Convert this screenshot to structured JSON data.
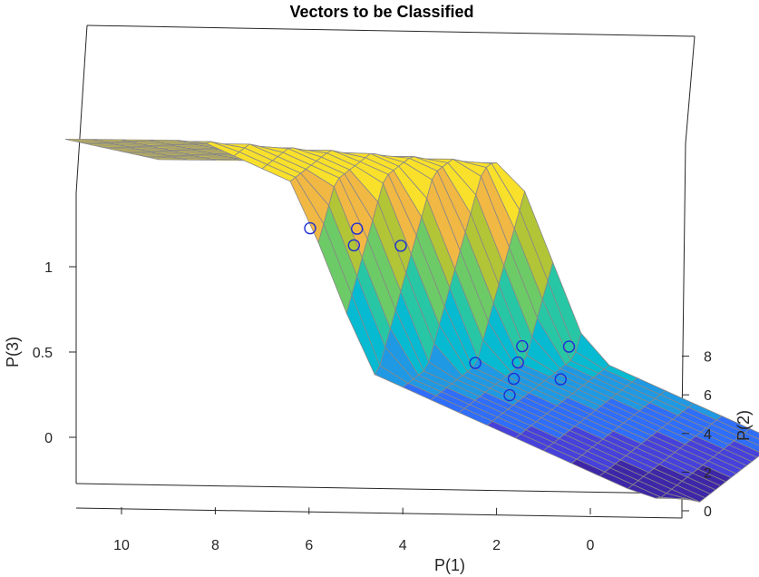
{
  "chart_data": {
    "type": "surface-3d",
    "title": "Vectors to be Classified",
    "xlabel": "P(1)",
    "ylabel": "P(2)",
    "zlabel": "P(3)",
    "x_ticks": [
      "10",
      "8",
      "6",
      "4",
      "2",
      "0"
    ],
    "y_ticks": [
      "0",
      "2",
      "4",
      "6",
      "8"
    ],
    "z_ticks": [
      "0",
      "0.5",
      "1"
    ],
    "colormap": [
      "#3e26a8",
      "#4741dc",
      "#2f6efa",
      "#1f99e3",
      "#06bad2",
      "#27c7a6",
      "#6ccb66",
      "#b2c536",
      "#f2b844",
      "#f9e02a"
    ],
    "marker_color": "#1c2fd6",
    "points": [
      {
        "x": 7.8,
        "y": 8.2,
        "z": 1.3
      },
      {
        "x": 6.8,
        "y": 8.2,
        "z": 1.3
      },
      {
        "x": 6.8,
        "y": 7.9,
        "z": 1.2
      },
      {
        "x": 5.8,
        "y": 7.9,
        "z": 1.2
      },
      {
        "x": 2.9,
        "y": 2.0,
        "z": 0.45
      },
      {
        "x": 1.9,
        "y": 2.0,
        "z": 0.55
      },
      {
        "x": 1.9,
        "y": 1.6,
        "z": 0.45
      },
      {
        "x": 1.9,
        "y": 1.2,
        "z": 0.35
      },
      {
        "x": 1.9,
        "y": 0.8,
        "z": 0.25
      },
      {
        "x": 0.9,
        "y": 2.0,
        "z": 0.55
      },
      {
        "x": 0.9,
        "y": 1.2,
        "z": 0.35
      }
    ]
  }
}
